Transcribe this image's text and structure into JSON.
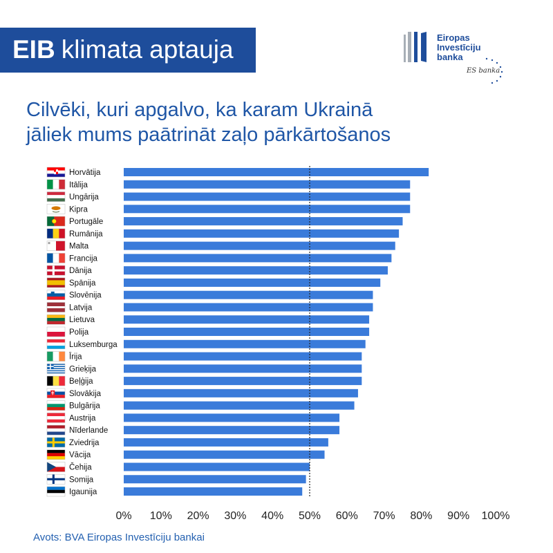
{
  "header": {
    "brand_bold": "EIB",
    "brand_rest": "klimata aptauja",
    "background_color": "#1E4D9B"
  },
  "logo": {
    "icon": "eib-logo-icon",
    "stars_icon": "eu-stars-icon",
    "lines": [
      "Eiropas",
      "Investīciju",
      "banka"
    ],
    "tagline": "ES banka"
  },
  "chart_data": {
    "type": "bar",
    "orientation": "horizontal",
    "title_lines": [
      "Cilvēki, kuri apgalvo, ka karam Ukrainā",
      "jāliek mums paātrināt zaļo pārkārtošanos"
    ],
    "categories": [
      "Horvātija",
      "Itālija",
      "Ungārija",
      "Kipra",
      "Portugāle",
      "Rumānija",
      "Malta",
      "Francija",
      "Dānija",
      "Spānija",
      "Slovēnija",
      "Latvija",
      "Lietuva",
      "Polija",
      "Luksemburga",
      "Īrija",
      "Grieķija",
      "Beļģija",
      "Slovākija",
      "Bulgārija",
      "Austrija",
      "Nīderlande",
      "Zviedrija",
      "Vācija",
      "Čehija",
      "Somija",
      "Igaunija"
    ],
    "values": [
      82,
      77,
      77,
      77,
      75,
      74,
      73,
      72,
      71,
      69,
      67,
      67,
      66,
      66,
      65,
      64,
      64,
      64,
      63,
      62,
      58,
      58,
      55,
      54,
      50,
      49,
      48
    ],
    "flag_icons": [
      "flag-hr-icon",
      "flag-it-icon",
      "flag-hu-icon",
      "flag-cy-icon",
      "flag-pt-icon",
      "flag-ro-icon",
      "flag-mt-icon",
      "flag-fr-icon",
      "flag-dk-icon",
      "flag-es-icon",
      "flag-si-icon",
      "flag-lv-icon",
      "flag-lt-icon",
      "flag-pl-icon",
      "flag-lu-icon",
      "flag-ie-icon",
      "flag-gr-icon",
      "flag-be-icon",
      "flag-sk-icon",
      "flag-bg-icon",
      "flag-at-icon",
      "flag-nl-icon",
      "flag-se-icon",
      "flag-de-icon",
      "flag-cz-icon",
      "flag-fi-icon",
      "flag-ee-icon"
    ],
    "xlim": [
      0,
      100
    ],
    "x_ticks": [
      0,
      10,
      20,
      30,
      40,
      50,
      60,
      70,
      80,
      90,
      100
    ],
    "x_tick_labels": [
      "0%",
      "10%",
      "20%",
      "30%",
      "40%",
      "50%",
      "60%",
      "70%",
      "80%",
      "90%",
      "100%"
    ],
    "reference_line": 50,
    "bar_color": "#3A7BDA",
    "grid": false,
    "legend": "none"
  },
  "source": "Avots: BVA Eiropas Investīciju bankai"
}
